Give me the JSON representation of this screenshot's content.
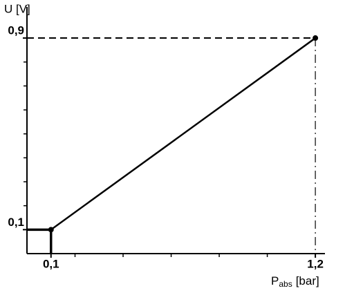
{
  "chart_data": {
    "type": "line",
    "ylabel": "U [V]",
    "xlabel": {
      "symbol": "P",
      "subscript": "abs",
      "unit": "[bar]"
    },
    "x": [
      0.1,
      1.2
    ],
    "series": [
      {
        "color": "#000000",
        "values": [
          0.1,
          0.9
        ]
      }
    ],
    "xlim": [
      0,
      1.24
    ],
    "ylim": [
      0,
      1.03
    ],
    "xticks": [
      {
        "value": 0.1,
        "label": "0,1"
      },
      {
        "value": 1.2,
        "label": "1,2"
      }
    ],
    "yticks": [
      {
        "value": 0.1,
        "label": "0,1"
      },
      {
        "value": 0.9,
        "label": "0,9"
      }
    ],
    "xminorticks": [
      0.2,
      0.4,
      0.6,
      0.8,
      1.0
    ],
    "yminorticks": [
      0.2,
      0.3,
      0.4,
      0.5,
      0.6,
      0.7,
      0.8
    ]
  }
}
